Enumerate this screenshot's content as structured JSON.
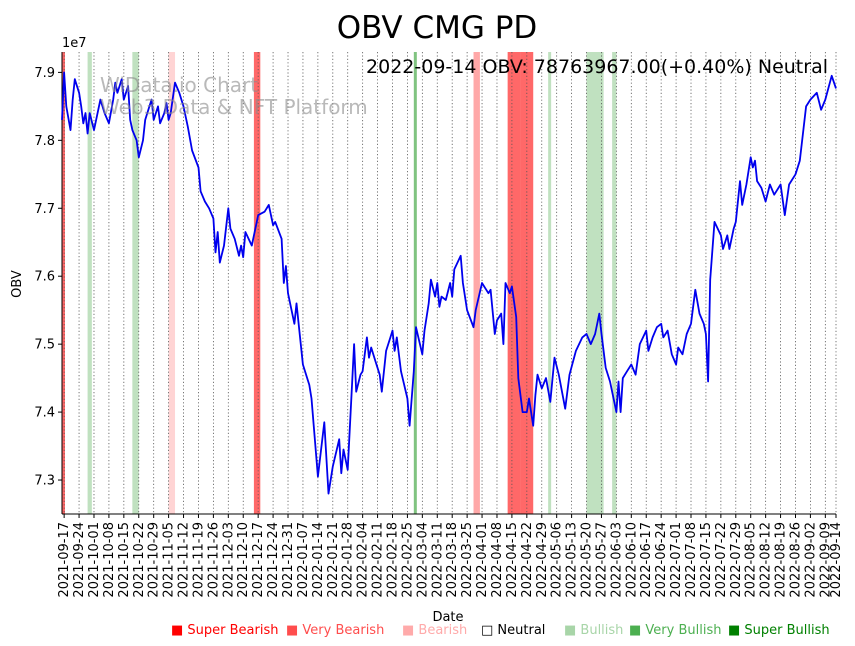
{
  "chart_data": {
    "type": "line",
    "title": "OBV CMG PD",
    "info_text": "2022-09-14 OBV: 78763967.00(+0.40%) Neutral",
    "watermark": [
      "WiData.io Chart",
      "Web3 Data & NFT Platform"
    ],
    "xlabel": "Date",
    "ylabel": "OBV",
    "y_scale_label": "1e7",
    "x_range": [
      "2021-09-16",
      "2022-09-14"
    ],
    "ylim": [
      72500000,
      79300000
    ],
    "yticks": [
      73000000,
      74000000,
      75000000,
      76000000,
      77000000,
      78000000,
      79000000
    ],
    "ytick_labels": [
      "7.3",
      "7.4",
      "7.5",
      "7.6",
      "7.7",
      "7.8",
      "7.9"
    ],
    "xticks": [
      "2021-09-17",
      "2021-09-24",
      "2021-10-01",
      "2021-10-08",
      "2021-10-15",
      "2021-10-22",
      "2021-10-29",
      "2021-11-05",
      "2021-11-12",
      "2021-11-19",
      "2021-11-26",
      "2021-12-03",
      "2021-12-10",
      "2021-12-17",
      "2021-12-24",
      "2021-12-31",
      "2022-01-07",
      "2022-01-14",
      "2022-01-21",
      "2022-01-28",
      "2022-02-04",
      "2022-02-11",
      "2022-02-18",
      "2022-02-25",
      "2022-03-04",
      "2022-03-11",
      "2022-03-18",
      "2022-03-25",
      "2022-04-01",
      "2022-04-08",
      "2022-04-15",
      "2022-04-22",
      "2022-04-29",
      "2022-05-06",
      "2022-05-13",
      "2022-05-20",
      "2022-05-27",
      "2022-06-03",
      "2022-06-10",
      "2022-06-17",
      "2022-06-24",
      "2022-07-01",
      "2022-07-08",
      "2022-07-15",
      "2022-07-22",
      "2022-07-29",
      "2022-08-05",
      "2022-08-12",
      "2022-08-19",
      "2022-08-26",
      "2022-09-02",
      "2022-09-09",
      "2022-09-14"
    ],
    "series": [
      {
        "name": "OBV",
        "color": "#0000ee",
        "points": [
          [
            "2021-09-16",
            78300000
          ],
          [
            "2021-09-17",
            79000000
          ],
          [
            "2021-09-18",
            78500000
          ],
          [
            "2021-09-20",
            78150000
          ],
          [
            "2021-09-21",
            78600000
          ],
          [
            "2021-09-22",
            78900000
          ],
          [
            "2021-09-24",
            78700000
          ],
          [
            "2021-09-25",
            78500000
          ],
          [
            "2021-09-26",
            78250000
          ],
          [
            "2021-09-27",
            78400000
          ],
          [
            "2021-09-28",
            78100000
          ],
          [
            "2021-09-29",
            78400000
          ],
          [
            "2021-10-01",
            78150000
          ],
          [
            "2021-10-04",
            78600000
          ],
          [
            "2021-10-06",
            78400000
          ],
          [
            "2021-10-08",
            78250000
          ],
          [
            "2021-10-10",
            78600000
          ],
          [
            "2021-10-11",
            78850000
          ],
          [
            "2021-10-12",
            78700000
          ],
          [
            "2021-10-13",
            78800000
          ],
          [
            "2021-10-14",
            78900000
          ],
          [
            "2021-10-15",
            78600000
          ],
          [
            "2021-10-17",
            78800000
          ],
          [
            "2021-10-18",
            78300000
          ],
          [
            "2021-10-19",
            78150000
          ],
          [
            "2021-10-21",
            78000000
          ],
          [
            "2021-10-22",
            77750000
          ],
          [
            "2021-10-24",
            78000000
          ],
          [
            "2021-10-25",
            78300000
          ],
          [
            "2021-10-27",
            78500000
          ],
          [
            "2021-10-28",
            78600000
          ],
          [
            "2021-10-29",
            78300000
          ],
          [
            "2021-10-31",
            78500000
          ],
          [
            "2021-11-01",
            78250000
          ],
          [
            "2021-11-03",
            78400000
          ],
          [
            "2021-11-04",
            78550000
          ],
          [
            "2021-11-05",
            78300000
          ],
          [
            "2021-11-06",
            78400000
          ],
          [
            "2021-11-08",
            78850000
          ],
          [
            "2021-11-10",
            78700000
          ],
          [
            "2021-11-12",
            78500000
          ],
          [
            "2021-11-14",
            78200000
          ],
          [
            "2021-11-16",
            77850000
          ],
          [
            "2021-11-19",
            77600000
          ],
          [
            "2021-11-20",
            77250000
          ],
          [
            "2021-11-22",
            77100000
          ],
          [
            "2021-11-24",
            77000000
          ],
          [
            "2021-11-26",
            76850000
          ],
          [
            "2021-11-27",
            76350000
          ],
          [
            "2021-11-28",
            76650000
          ],
          [
            "2021-11-29",
            76200000
          ],
          [
            "2021-12-01",
            76450000
          ],
          [
            "2021-12-03",
            77000000
          ],
          [
            "2021-12-04",
            76700000
          ],
          [
            "2021-12-06",
            76550000
          ],
          [
            "2021-12-08",
            76300000
          ],
          [
            "2021-12-09",
            76450000
          ],
          [
            "2021-12-10",
            76280000
          ],
          [
            "2021-12-11",
            76650000
          ],
          [
            "2021-12-14",
            76450000
          ],
          [
            "2021-12-17",
            76900000
          ],
          [
            "2021-12-20",
            76950000
          ],
          [
            "2021-12-22",
            77050000
          ],
          [
            "2021-12-24",
            76750000
          ],
          [
            "2021-12-25",
            76800000
          ],
          [
            "2021-12-28",
            76550000
          ],
          [
            "2021-12-29",
            75900000
          ],
          [
            "2021-12-30",
            76150000
          ],
          [
            "2021-12-31",
            75750000
          ],
          [
            "2022-01-03",
            75300000
          ],
          [
            "2022-01-04",
            75600000
          ],
          [
            "2022-01-07",
            74700000
          ],
          [
            "2022-01-10",
            74400000
          ],
          [
            "2022-01-11",
            74200000
          ],
          [
            "2022-01-14",
            73050000
          ],
          [
            "2022-01-17",
            73850000
          ],
          [
            "2022-01-19",
            72800000
          ],
          [
            "2022-01-21",
            73200000
          ],
          [
            "2022-01-24",
            73600000
          ],
          [
            "2022-01-25",
            73100000
          ],
          [
            "2022-01-26",
            73450000
          ],
          [
            "2022-01-28",
            73150000
          ],
          [
            "2022-01-31",
            75000000
          ],
          [
            "2022-02-01",
            74300000
          ],
          [
            "2022-02-03",
            74550000
          ],
          [
            "2022-02-04",
            74600000
          ],
          [
            "2022-02-06",
            75100000
          ],
          [
            "2022-02-07",
            74800000
          ],
          [
            "2022-02-08",
            74950000
          ],
          [
            "2022-02-10",
            74750000
          ],
          [
            "2022-02-12",
            74550000
          ],
          [
            "2022-02-13",
            74300000
          ],
          [
            "2022-02-15",
            74900000
          ],
          [
            "2022-02-17",
            75100000
          ],
          [
            "2022-02-18",
            75200000
          ],
          [
            "2022-02-19",
            74900000
          ],
          [
            "2022-02-20",
            75100000
          ],
          [
            "2022-02-22",
            74600000
          ],
          [
            "2022-02-25",
            74200000
          ],
          [
            "2022-02-26",
            73800000
          ],
          [
            "2022-02-28",
            74600000
          ],
          [
            "2022-03-01",
            75250000
          ],
          [
            "2022-03-04",
            74850000
          ],
          [
            "2022-03-05",
            75200000
          ],
          [
            "2022-03-07",
            75600000
          ],
          [
            "2022-03-08",
            75950000
          ],
          [
            "2022-03-10",
            75700000
          ],
          [
            "2022-03-11",
            75900000
          ],
          [
            "2022-03-12",
            75550000
          ],
          [
            "2022-03-13",
            75700000
          ],
          [
            "2022-03-15",
            75650000
          ],
          [
            "2022-03-17",
            75900000
          ],
          [
            "2022-03-18",
            75700000
          ],
          [
            "2022-03-19",
            76100000
          ],
          [
            "2022-03-22",
            76300000
          ],
          [
            "2022-03-23",
            75900000
          ],
          [
            "2022-03-25",
            75500000
          ],
          [
            "2022-03-28",
            75250000
          ],
          [
            "2022-03-29",
            75500000
          ],
          [
            "2022-04-01",
            75900000
          ],
          [
            "2022-04-04",
            75750000
          ],
          [
            "2022-04-05",
            75800000
          ],
          [
            "2022-04-07",
            75150000
          ],
          [
            "2022-04-08",
            75350000
          ],
          [
            "2022-04-10",
            75450000
          ],
          [
            "2022-04-11",
            75000000
          ],
          [
            "2022-04-12",
            75900000
          ],
          [
            "2022-04-14",
            75750000
          ],
          [
            "2022-04-15",
            75850000
          ],
          [
            "2022-04-17",
            75400000
          ],
          [
            "2022-04-18",
            74500000
          ],
          [
            "2022-04-20",
            74000000
          ],
          [
            "2022-04-22",
            74000000
          ],
          [
            "2022-04-23",
            74200000
          ],
          [
            "2022-04-25",
            73800000
          ],
          [
            "2022-04-26",
            74250000
          ],
          [
            "2022-04-27",
            74550000
          ],
          [
            "2022-04-29",
            74350000
          ],
          [
            "2022-05-01",
            74500000
          ],
          [
            "2022-05-03",
            74150000
          ],
          [
            "2022-05-05",
            74800000
          ],
          [
            "2022-05-07",
            74550000
          ],
          [
            "2022-05-10",
            74050000
          ],
          [
            "2022-05-12",
            74550000
          ],
          [
            "2022-05-15",
            74900000
          ],
          [
            "2022-05-18",
            75100000
          ],
          [
            "2022-05-20",
            75150000
          ],
          [
            "2022-05-22",
            75000000
          ],
          [
            "2022-05-24",
            75150000
          ],
          [
            "2022-05-26",
            75450000
          ],
          [
            "2022-05-27",
            75150000
          ],
          [
            "2022-05-29",
            74650000
          ],
          [
            "2022-05-31",
            74450000
          ],
          [
            "2022-06-03",
            74000000
          ],
          [
            "2022-06-04",
            74450000
          ],
          [
            "2022-06-05",
            74000000
          ],
          [
            "2022-06-06",
            74500000
          ],
          [
            "2022-06-08",
            74600000
          ],
          [
            "2022-06-10",
            74700000
          ],
          [
            "2022-06-12",
            74550000
          ],
          [
            "2022-06-14",
            75000000
          ],
          [
            "2022-06-17",
            75200000
          ],
          [
            "2022-06-18",
            74900000
          ],
          [
            "2022-06-20",
            75100000
          ],
          [
            "2022-06-22",
            75250000
          ],
          [
            "2022-06-24",
            75300000
          ],
          [
            "2022-06-25",
            75100000
          ],
          [
            "2022-06-27",
            75200000
          ],
          [
            "2022-06-29",
            74850000
          ],
          [
            "2022-07-01",
            74700000
          ],
          [
            "2022-07-02",
            74950000
          ],
          [
            "2022-07-04",
            74850000
          ],
          [
            "2022-07-06",
            75150000
          ],
          [
            "2022-07-08",
            75300000
          ],
          [
            "2022-07-10",
            75800000
          ],
          [
            "2022-07-12",
            75450000
          ],
          [
            "2022-07-14",
            75300000
          ],
          [
            "2022-07-15",
            75150000
          ],
          [
            "2022-07-16",
            74450000
          ],
          [
            "2022-07-17",
            75950000
          ],
          [
            "2022-07-19",
            76800000
          ],
          [
            "2022-07-22",
            76600000
          ],
          [
            "2022-07-23",
            76400000
          ],
          [
            "2022-07-25",
            76600000
          ],
          [
            "2022-07-26",
            76400000
          ],
          [
            "2022-07-28",
            76700000
          ],
          [
            "2022-07-29",
            76800000
          ],
          [
            "2022-07-31",
            77400000
          ],
          [
            "2022-08-01",
            77050000
          ],
          [
            "2022-08-03",
            77350000
          ],
          [
            "2022-08-05",
            77750000
          ],
          [
            "2022-08-06",
            77600000
          ],
          [
            "2022-08-07",
            77700000
          ],
          [
            "2022-08-08",
            77400000
          ],
          [
            "2022-08-10",
            77300000
          ],
          [
            "2022-08-12",
            77100000
          ],
          [
            "2022-08-14",
            77350000
          ],
          [
            "2022-08-16",
            77200000
          ],
          [
            "2022-08-19",
            77350000
          ],
          [
            "2022-08-21",
            76900000
          ],
          [
            "2022-08-23",
            77350000
          ],
          [
            "2022-08-26",
            77500000
          ],
          [
            "2022-08-28",
            77700000
          ],
          [
            "2022-08-31",
            78500000
          ],
          [
            "2022-09-02",
            78600000
          ],
          [
            "2022-09-05",
            78700000
          ],
          [
            "2022-09-07",
            78450000
          ],
          [
            "2022-09-09",
            78600000
          ],
          [
            "2022-09-12",
            78950000
          ],
          [
            "2022-09-14",
            78764000
          ]
        ]
      }
    ],
    "bands": [
      {
        "start": "2021-09-16",
        "end": "2021-09-17",
        "level": "very_bearish"
      },
      {
        "start": "2021-09-28",
        "end": "2021-09-30",
        "level": "bullish"
      },
      {
        "start": "2021-10-19",
        "end": "2021-10-22",
        "level": "bullish"
      },
      {
        "start": "2021-11-05",
        "end": "2021-11-08",
        "level": "bearish_light"
      },
      {
        "start": "2021-12-15",
        "end": "2021-12-18",
        "level": "very_bearish"
      },
      {
        "start": "2022-02-28",
        "end": "2022-03-01",
        "level": "very_bullish"
      },
      {
        "start": "2022-03-28",
        "end": "2022-03-31",
        "level": "bearish"
      },
      {
        "start": "2022-04-13",
        "end": "2022-04-19",
        "level": "very_bearish"
      },
      {
        "start": "2022-04-19",
        "end": "2022-04-25",
        "level": "very_bearish"
      },
      {
        "start": "2022-05-02",
        "end": "2022-05-03",
        "level": "bullish"
      },
      {
        "start": "2022-05-20",
        "end": "2022-05-28",
        "level": "bullish"
      },
      {
        "start": "2022-06-01",
        "end": "2022-06-03",
        "level": "bullish"
      }
    ],
    "legend": [
      {
        "label": "Super Bearish",
        "marker": "■",
        "color": "#ff0000"
      },
      {
        "label": "Very Bearish",
        "marker": "■",
        "color": "#ff4d4d"
      },
      {
        "label": "Bearish",
        "marker": "■",
        "color": "#ffaaaa"
      },
      {
        "label": "Neutral",
        "marker": "□",
        "color": "#000000"
      },
      {
        "label": "Bullish",
        "marker": "■",
        "color": "#a8d5a8"
      },
      {
        "label": "Very Bullish",
        "marker": "■",
        "color": "#4caf50"
      },
      {
        "label": "Super Bullish",
        "marker": "■",
        "color": "#008000"
      }
    ],
    "band_colors": {
      "very_bearish": "#ff4d4d",
      "bearish": "#ff9999",
      "bearish_light": "#ffcccc",
      "bullish": "#b5dcb5",
      "very_bullish": "#6ab86a"
    }
  }
}
